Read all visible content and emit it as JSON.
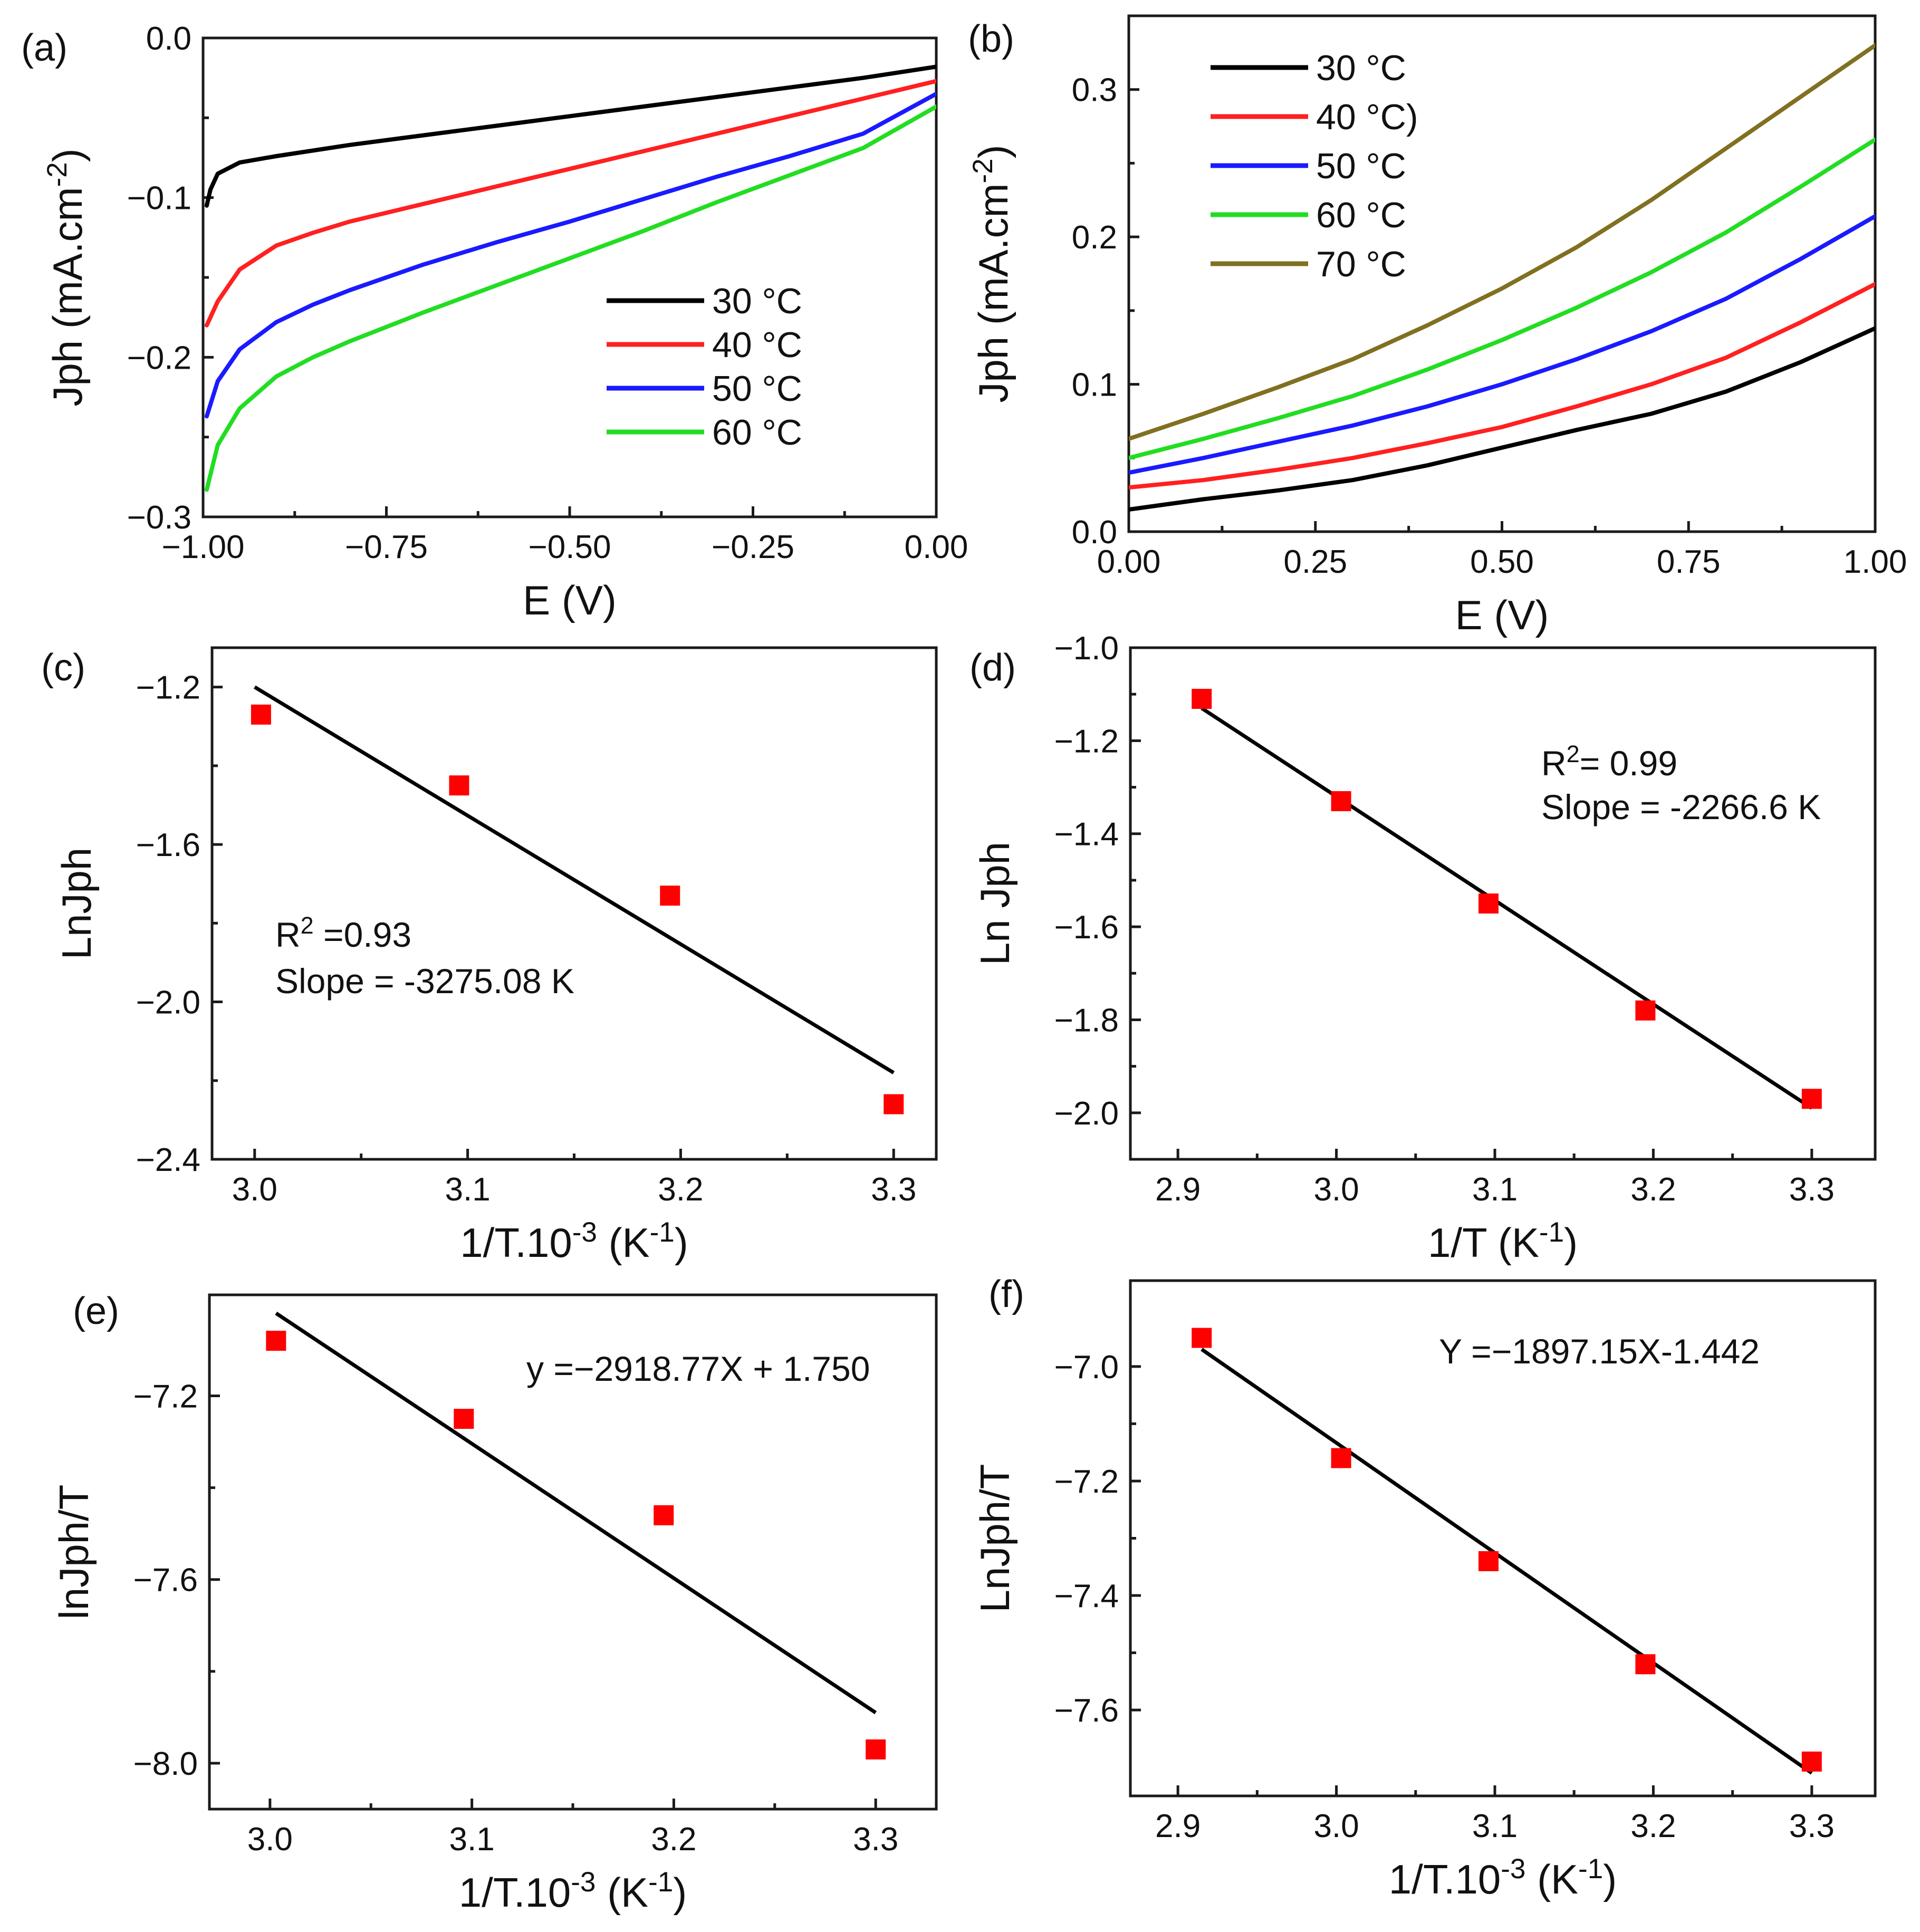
{
  "chart_data": [
    {
      "panel": "(a)",
      "type": "line",
      "xlabel": "E (V)",
      "ylabel": "Jph (mA.cm-2)",
      "ylabel_parts": {
        "base": "Jph (mA.cm",
        "sup": "-2",
        "tail": ")"
      },
      "xlim": [
        -1.0,
        0.0
      ],
      "ylim": [
        -0.3,
        0.0
      ],
      "xticks": [
        -1.0,
        -0.75,
        -0.5,
        -0.25,
        0.0
      ],
      "xtick_labels": [
        "−1.00",
        "−0.75",
        "−0.50",
        "−0.25",
        "0.00"
      ],
      "yticks": [
        0.0,
        -0.1,
        -0.2,
        -0.3
      ],
      "ytick_labels": [
        "0.0",
        "−0.1",
        "−0.2",
        "−0.3"
      ],
      "legend_position": "center-right",
      "series": [
        {
          "name": "30 °C",
          "color": "#000000",
          "x": [
            -0.995,
            -0.99,
            -0.98,
            -0.95,
            -0.9,
            -0.8,
            -0.7,
            -0.6,
            -0.5,
            -0.4,
            -0.3,
            -0.2,
            -0.1,
            0.0
          ],
          "y": [
            -0.105,
            -0.095,
            -0.085,
            -0.078,
            -0.074,
            -0.067,
            -0.061,
            -0.055,
            -0.049,
            -0.043,
            -0.037,
            -0.031,
            -0.025,
            -0.018
          ]
        },
        {
          "name": "40 °C",
          "color": "#ff2020",
          "x": [
            -0.995,
            -0.98,
            -0.95,
            -0.9,
            -0.85,
            -0.8,
            -0.7,
            -0.6,
            -0.5,
            -0.4,
            -0.3,
            -0.2,
            -0.1,
            0.0
          ],
          "y": [
            -0.18,
            -0.165,
            -0.145,
            -0.13,
            -0.122,
            -0.115,
            -0.104,
            -0.093,
            -0.082,
            -0.071,
            -0.06,
            -0.049,
            -0.038,
            -0.027
          ]
        },
        {
          "name": "50 °C",
          "color": "#1a1aff",
          "x": [
            -0.995,
            -0.98,
            -0.95,
            -0.9,
            -0.85,
            -0.8,
            -0.7,
            -0.6,
            -0.5,
            -0.4,
            -0.3,
            -0.2,
            -0.1,
            0.0
          ],
          "y": [
            -0.237,
            -0.215,
            -0.195,
            -0.178,
            -0.167,
            -0.158,
            -0.142,
            -0.128,
            -0.115,
            -0.101,
            -0.087,
            -0.074,
            -0.06,
            -0.035
          ]
        },
        {
          "name": "60 °C",
          "color": "#22dd22",
          "x": [
            -0.995,
            -0.98,
            -0.95,
            -0.9,
            -0.85,
            -0.8,
            -0.7,
            -0.6,
            -0.5,
            -0.4,
            -0.3,
            -0.2,
            -0.1,
            0.0
          ],
          "y": [
            -0.283,
            -0.255,
            -0.232,
            -0.212,
            -0.2,
            -0.19,
            -0.172,
            -0.155,
            -0.138,
            -0.121,
            -0.103,
            -0.086,
            -0.069,
            -0.043
          ]
        }
      ]
    },
    {
      "panel": "(b)",
      "type": "line",
      "xlabel": "E (V)",
      "ylabel": "Jph (mA.cm-2)",
      "ylabel_parts": {
        "base": "Jph (mA.cm",
        "sup": "-2",
        "tail": ")"
      },
      "xlim": [
        0.0,
        1.0
      ],
      "ylim": [
        0.0,
        0.35
      ],
      "xticks": [
        0.0,
        0.25,
        0.5,
        0.75,
        1.0
      ],
      "xtick_labels": [
        "0.00",
        "0.25",
        "0.50",
        "0.75",
        "1.00"
      ],
      "yticks": [
        0.0,
        0.1,
        0.2,
        0.3
      ],
      "ytick_labels": [
        "0.0",
        "0.1",
        "0.2",
        "0.3"
      ],
      "legend_position": "top-left",
      "series": [
        {
          "name": "30 °C",
          "color": "#000000",
          "x": [
            0.0,
            0.1,
            0.2,
            0.3,
            0.4,
            0.5,
            0.6,
            0.7,
            0.8,
            0.9,
            1.0
          ],
          "y": [
            0.015,
            0.022,
            0.028,
            0.035,
            0.045,
            0.057,
            0.069,
            0.08,
            0.095,
            0.115,
            0.138
          ]
        },
        {
          "name": "40 °C)",
          "color": "#ff2020",
          "x": [
            0.0,
            0.1,
            0.2,
            0.3,
            0.4,
            0.5,
            0.6,
            0.7,
            0.8,
            0.9,
            1.0
          ],
          "y": [
            0.03,
            0.035,
            0.042,
            0.05,
            0.06,
            0.071,
            0.085,
            0.1,
            0.118,
            0.142,
            0.168
          ]
        },
        {
          "name": "50 °C",
          "color": "#1a1aff",
          "x": [
            0.0,
            0.1,
            0.2,
            0.3,
            0.4,
            0.5,
            0.6,
            0.7,
            0.8,
            0.9,
            1.0
          ],
          "y": [
            0.04,
            0.05,
            0.061,
            0.072,
            0.085,
            0.1,
            0.117,
            0.136,
            0.158,
            0.185,
            0.214
          ]
        },
        {
          "name": "60 °C",
          "color": "#22dd22",
          "x": [
            0.0,
            0.1,
            0.2,
            0.3,
            0.4,
            0.5,
            0.6,
            0.7,
            0.8,
            0.9,
            1.0
          ],
          "y": [
            0.05,
            0.063,
            0.077,
            0.092,
            0.11,
            0.13,
            0.152,
            0.176,
            0.203,
            0.234,
            0.266
          ]
        },
        {
          "name": "70 °C",
          "color": "#807020",
          "x": [
            0.0,
            0.1,
            0.2,
            0.3,
            0.4,
            0.5,
            0.6,
            0.7,
            0.8,
            0.9,
            1.0
          ],
          "y": [
            0.063,
            0.08,
            0.098,
            0.117,
            0.14,
            0.165,
            0.193,
            0.225,
            0.26,
            0.295,
            0.33
          ]
        }
      ]
    },
    {
      "panel": "(c)",
      "type": "scatter",
      "xlabel": "1/T.10-3 (K-1)",
      "xlabel_parts": [
        {
          "t": "1/T.10"
        },
        {
          "t": "-3",
          "sup": true
        },
        {
          "t": " (K"
        },
        {
          "t": "-1",
          "sup": true
        },
        {
          "t": ")"
        }
      ],
      "ylabel": "LnJph",
      "xlim": [
        2.98,
        3.32
      ],
      "ylim": [
        -2.4,
        -1.1
      ],
      "xticks": [
        3.0,
        3.1,
        3.2,
        3.3
      ],
      "xtick_labels": [
        "3.0",
        "3.1",
        "3.2",
        "3.3"
      ],
      "yticks": [
        -1.2,
        -1.6,
        -2.0,
        -2.4
      ],
      "ytick_labels": [
        "−1.2",
        "−1.6",
        "−2.0",
        "−2.4"
      ],
      "points": {
        "x": [
          3.003,
          3.096,
          3.195,
          3.3
        ],
        "y": [
          -1.27,
          -1.45,
          -1.73,
          -2.26
        ]
      },
      "fit": {
        "x": [
          3.0,
          3.3
        ],
        "y": [
          -1.2,
          -2.18
        ]
      },
      "annotation": [
        "R2 =0.93",
        "Slope = -3275.08 K"
      ],
      "annotation_parts": [
        {
          "base": "R",
          "sup": "2",
          "tail": " =0.93"
        },
        "Slope = -3275.08 K"
      ]
    },
    {
      "panel": "(d)",
      "type": "scatter",
      "xlabel": "1/T (K-1)",
      "xlabel_parts": [
        {
          "t": "1/T (K"
        },
        {
          "t": "-1",
          "sup": true
        },
        {
          "t": ")"
        }
      ],
      "ylabel": "Ln Jph",
      "xlim": [
        2.87,
        3.34
      ],
      "ylim": [
        -2.1,
        -1.0
      ],
      "xticks": [
        2.9,
        3.0,
        3.1,
        3.2,
        3.3
      ],
      "xtick_labels": [
        "2.9",
        "3.0",
        "3.1",
        "3.2",
        "3.3"
      ],
      "yticks": [
        -1.0,
        -1.2,
        -1.4,
        -1.6,
        -1.8,
        -2.0
      ],
      "ytick_labels": [
        "−1.0",
        "−1.2",
        "−1.4",
        "−1.6",
        "−1.8",
        "−2.0"
      ],
      "points": {
        "x": [
          2.915,
          3.003,
          3.096,
          3.195,
          3.3
        ],
        "y": [
          -1.11,
          -1.33,
          -1.55,
          -1.78,
          -1.97
        ]
      },
      "fit": {
        "x": [
          2.915,
          3.3
        ],
        "y": [
          -1.13,
          -1.99
        ]
      },
      "annotation": [
        "R2= 0.99",
        "Slope = -2266.6 K"
      ],
      "annotation_parts": [
        {
          "base": "R",
          "sup": "2",
          "tail": "= 0.99"
        },
        "Slope = -2266.6 K"
      ]
    },
    {
      "panel": "(e)",
      "type": "scatter",
      "xlabel": "1/T.10-3 (K-1)",
      "xlabel_parts": [
        {
          "t": "1/T.10"
        },
        {
          "t": "-3",
          "sup": true
        },
        {
          "t": " (K"
        },
        {
          "t": "-1",
          "sup": true
        },
        {
          "t": ")"
        }
      ],
      "ylabel": "lnJph/T",
      "xlim": [
        2.97,
        3.33
      ],
      "ylim": [
        -8.1,
        -6.98
      ],
      "xticks": [
        3.0,
        3.1,
        3.2,
        3.3
      ],
      "xtick_labels": [
        "3.0",
        "3.1",
        "3.2",
        "3.3"
      ],
      "yticks": [
        -7.2,
        -7.6,
        -8.0
      ],
      "ytick_labels": [
        "−7.2",
        "−7.6",
        "−8.0"
      ],
      "points": {
        "x": [
          3.003,
          3.096,
          3.195,
          3.3
        ],
        "y": [
          -7.08,
          -7.25,
          -7.46,
          -7.97
        ]
      },
      "fit": {
        "x": [
          3.003,
          3.3
        ],
        "y": [
          -7.02,
          -7.89
        ]
      },
      "annotation": [
        "y =−2918.77X + 1.750"
      ],
      "annotation_parts": [
        "y =−2918.77X + 1.750"
      ]
    },
    {
      "panel": "(f)",
      "type": "scatter",
      "xlabel": "1/T.10-3 (K-1)",
      "xlabel_parts": [
        {
          "t": "1/T.10"
        },
        {
          "t": "-3",
          "sup": true
        },
        {
          "t": " (K"
        },
        {
          "t": "-1",
          "sup": true
        },
        {
          "t": ")"
        }
      ],
      "ylabel": "LnJph/T",
      "xlim": [
        2.87,
        3.34
      ],
      "ylim": [
        -7.75,
        -6.85
      ],
      "xticks": [
        2.9,
        3.0,
        3.1,
        3.2,
        3.3
      ],
      "xtick_labels": [
        "2.9",
        "3.0",
        "3.1",
        "3.2",
        "3.3"
      ],
      "yticks": [
        -7.0,
        -7.2,
        -7.4,
        -7.6
      ],
      "ytick_labels": [
        "−7.0",
        "−7.2",
        "−7.4",
        "−7.6"
      ],
      "points": {
        "x": [
          2.915,
          3.003,
          3.096,
          3.195,
          3.3
        ],
        "y": [
          -6.95,
          -7.16,
          -7.34,
          -7.52,
          -7.69
        ]
      },
      "fit": {
        "x": [
          2.915,
          3.3
        ],
        "y": [
          -6.97,
          -7.71
        ]
      },
      "annotation": [
        "Y =−1897.15X-1.442"
      ],
      "annotation_parts": [
        "Y =−1897.15X-1.442"
      ]
    }
  ],
  "colors": {
    "axis": "#1a1a1a",
    "marker": "#ff0000",
    "fit": "#000000"
  }
}
